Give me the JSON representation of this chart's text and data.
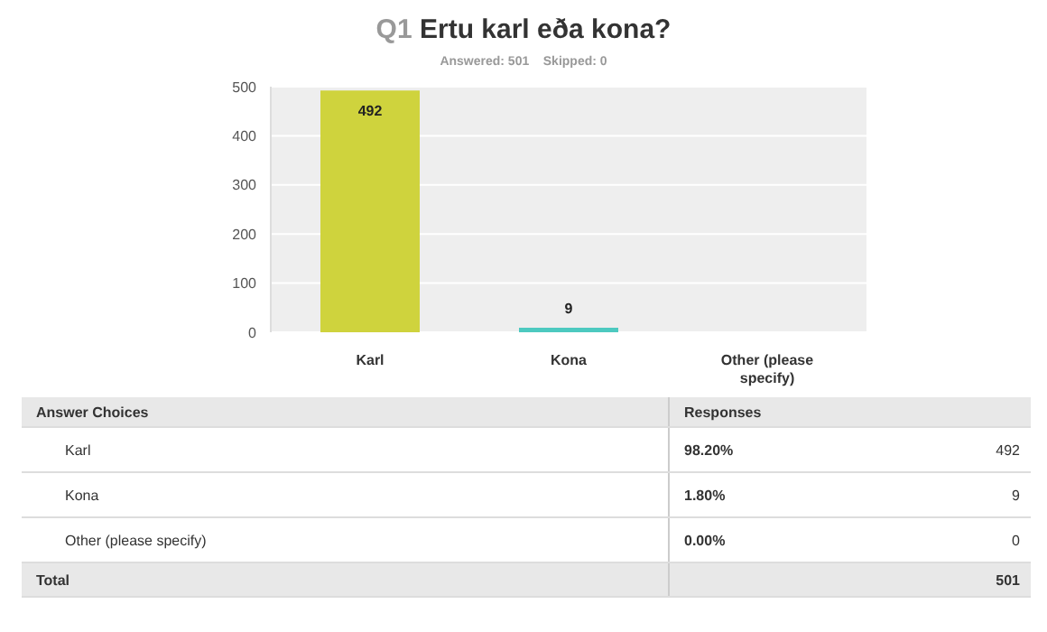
{
  "chart_data": {
    "type": "bar",
    "title": "Q1 Ertu karl eða kona?",
    "subtitle": "Answered: 501    Skipped: 0",
    "categories": [
      "Karl",
      "Kona",
      "Other (please specify)"
    ],
    "values": [
      492,
      9,
      0
    ],
    "colors": [
      "#cfd33d",
      "#4dc9c0",
      null
    ],
    "value_labels": [
      "492",
      "9",
      null
    ],
    "ylim": [
      0,
      500
    ],
    "yticks": [
      0,
      100,
      200,
      300,
      400,
      500
    ],
    "grid": "y",
    "annotations": [
      "Answer Choices",
      "Responses",
      "98.20%",
      "492",
      "1.80%",
      "9",
      "0.00%",
      "0",
      "Total",
      "501"
    ]
  }
}
